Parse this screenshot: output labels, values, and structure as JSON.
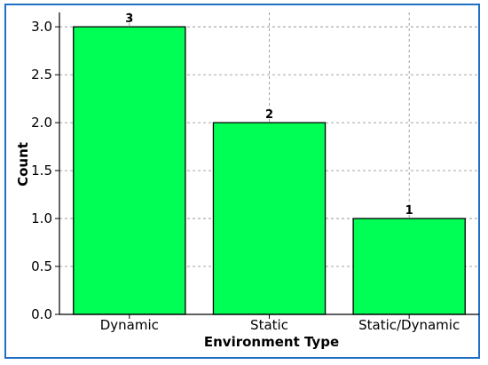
{
  "chart_data": {
    "type": "bar",
    "title": "",
    "xlabel": "Environment Type",
    "ylabel": "Count",
    "categories": [
      "Dynamic",
      "Static",
      "Static/Dynamic"
    ],
    "values": [
      3,
      2,
      1
    ],
    "data_labels": [
      "3",
      "2",
      "1"
    ],
    "ylim": [
      0,
      3.15
    ],
    "yticks": [
      0.0,
      0.5,
      1.0,
      1.5,
      2.0,
      2.5,
      3.0
    ],
    "ytick_labels": [
      "0.0",
      "0.5",
      "1.0",
      "1.5",
      "2.0",
      "2.5",
      "3.0"
    ],
    "grid": true,
    "bar_color": "#00ff55",
    "bar_edge_color": "#000000",
    "frame_color": "#1f6fc5",
    "grid_color": "#888888"
  }
}
